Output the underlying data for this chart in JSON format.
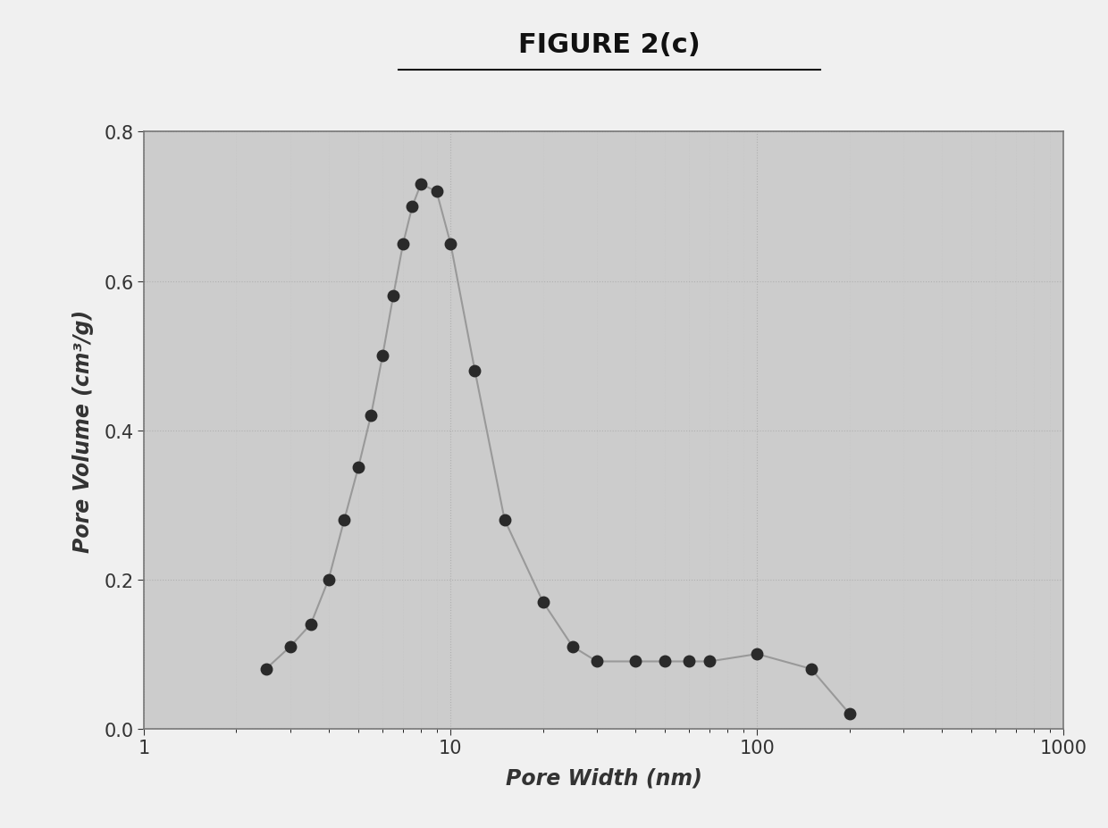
{
  "title": "FIGURE 2(c)",
  "xlabel": "Pore Width (nm)",
  "ylabel": "Pore Volume (cm³/g)",
  "x_data": [
    2.5,
    3.0,
    3.5,
    4.0,
    4.5,
    5.0,
    5.5,
    6.0,
    6.5,
    7.0,
    7.5,
    8.0,
    9.0,
    10.0,
    12.0,
    15.0,
    20.0,
    25.0,
    30.0,
    40.0,
    50.0,
    60.0,
    70.0,
    100.0,
    150.0,
    200.0
  ],
  "y_data": [
    0.08,
    0.11,
    0.14,
    0.2,
    0.28,
    0.35,
    0.42,
    0.5,
    0.58,
    0.65,
    0.7,
    0.73,
    0.72,
    0.65,
    0.48,
    0.28,
    0.17,
    0.11,
    0.09,
    0.09,
    0.09,
    0.09,
    0.09,
    0.1,
    0.08,
    0.02
  ],
  "ylim": [
    0.0,
    0.8
  ],
  "xlim_log": [
    1,
    1000
  ],
  "yticks": [
    0.0,
    0.2,
    0.4,
    0.6,
    0.8
  ],
  "ytick_labels": [
    "0.0",
    "0.2",
    "0.4",
    "0.6",
    "0.8"
  ],
  "line_color": "#999999",
  "marker_color": "#2a2a2a",
  "marker_size": 9,
  "line_width": 1.5,
  "plot_bg_color": "#cccccc",
  "fig_bg_color": "#f0f0f0",
  "title_fontsize": 22,
  "label_fontsize": 17,
  "tick_fontsize": 15
}
